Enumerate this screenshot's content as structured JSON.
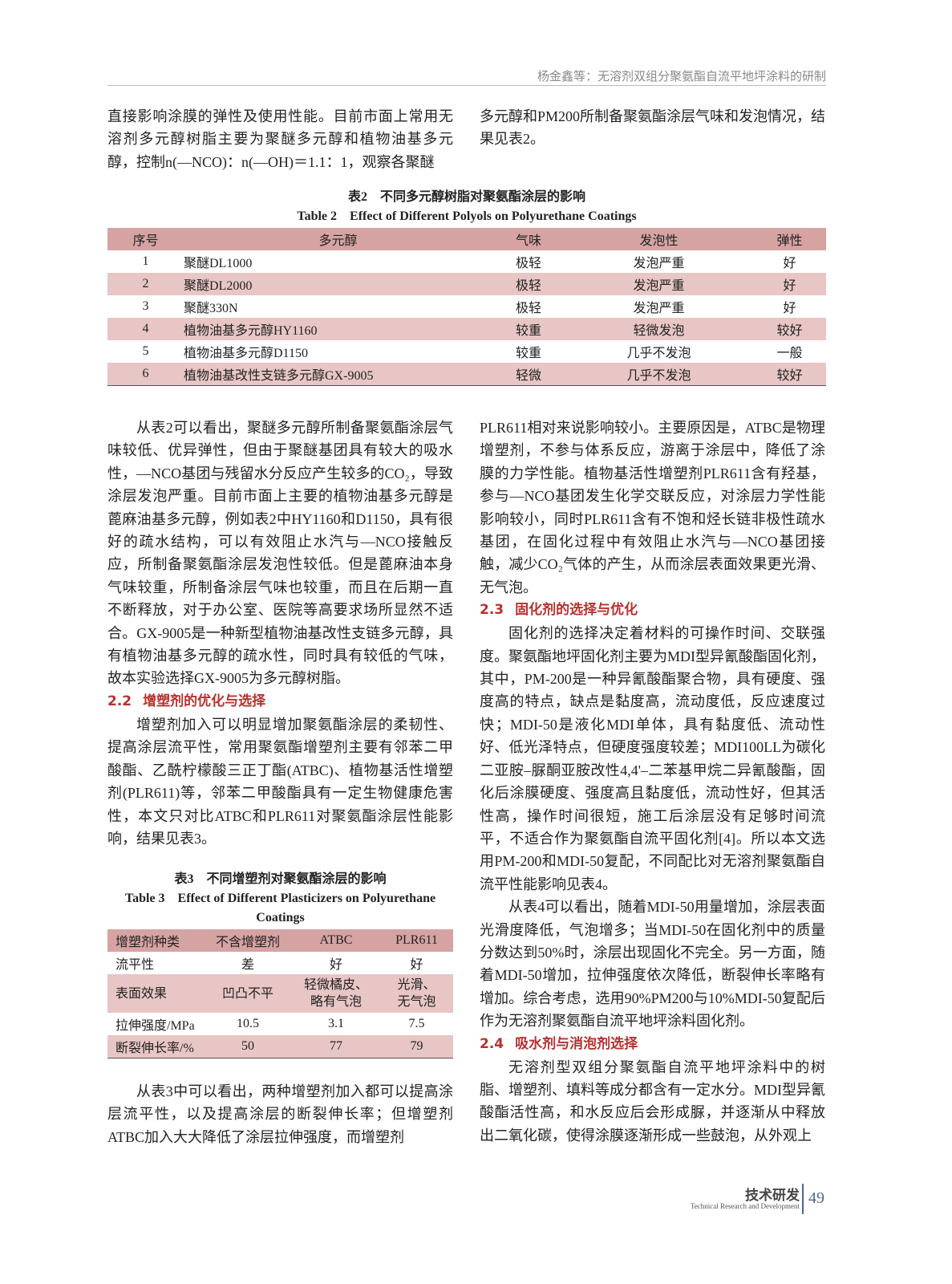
{
  "header": {
    "running_title": "杨金鑫等：无溶剂双组分聚氨酯自流平地坪涂料的研制"
  },
  "top_left": "直接影响涂膜的弹性及使用性能。目前市面上常用无溶剂多元醇树脂主要为聚醚多元醇和植物油基多元醇，控制n(—NCO)：n(—OH)＝1.1：1，观察各聚醚",
  "top_right": "多元醇和PM200所制备聚氨酯涂层气味和发泡情况，结果见表2。",
  "table2": {
    "title_cn": "表2　不同多元醇树脂对聚氨酯涂层的影响",
    "title_en": "Table 2　Effect of Different Polyols on Polyurethane Coatings",
    "headers": [
      "序号",
      "多元醇",
      "气味",
      "发泡性",
      "弹性"
    ],
    "rows": [
      [
        "1",
        "聚醚DL1000",
        "极轻",
        "发泡严重",
        "好"
      ],
      [
        "2",
        "聚醚DL2000",
        "极轻",
        "发泡严重",
        "好"
      ],
      [
        "3",
        "聚醚330N",
        "极轻",
        "发泡严重",
        "好"
      ],
      [
        "4",
        "植物油基多元醇HY1160",
        "较重",
        "轻微发泡",
        "较好"
      ],
      [
        "5",
        "植物油基多元醇D1150",
        "较重",
        "几乎不发泡",
        "一般"
      ],
      [
        "6",
        "植物油基改性支链多元醇GX-9005",
        "轻微",
        "几乎不发泡",
        "较好"
      ]
    ]
  },
  "left": {
    "p1": "从表2可以看出，聚醚多元醇所制备聚氨酯涂层气味较低、优异弹性，但由于聚醚基团具有较大的吸水性，—NCO基团与残留水分反应产生较多的CO₂，导致涂层发泡严重。目前市面上主要的植物油基多元醇是蓖麻油基多元醇，例如表2中HY1160和D1150，具有很好的疏水结构，可以有效阻止水汽与—NCO接触反应，所制备聚氨酯涂层发泡性较低。但是蓖麻油本身气味较重，所制备涂层气味也较重，而且在后期一直不断释放，对于办公室、医院等高要求场所显然不适合。GX-9005是一种新型植物油基改性支链多元醇，具有植物油基多元醇的疏水性，同时具有较低的气味，故本实验选择GX-9005为多元醇树脂。",
    "h22_num": "2.2",
    "h22": "增塑剂的优化与选择",
    "p2": "增塑剂加入可以明显增加聚氨酯涂层的柔韧性、提高涂层流平性，常用聚氨酯增塑剂主要有邻苯二甲酸酯、乙酰柠檬酸三正丁酯(ATBC)、植物基活性增塑剂(PLR611)等，邻苯二甲酸酯具有一定生物健康危害性，本文只对比ATBC和PLR611对聚氨酯涂层性能影响，结果见表3。",
    "p3": "从表3中可以看出，两种增塑剂加入都可以提高涂层流平性，以及提高涂层的断裂伸长率；但增塑剂ATBC加入大大降低了涂层拉伸强度，而增塑剂"
  },
  "table3": {
    "title_cn": "表3　不同增塑剂对聚氨酯涂层的影响",
    "title_en": "Table 3　Effect of Different Plasticizers on Polyurethane Coatings",
    "headers": [
      "增塑剂种类",
      "不含增塑剂",
      "ATBC",
      "PLR611"
    ],
    "rows": [
      [
        "流平性",
        "差",
        "好",
        "好"
      ],
      [
        "表面效果",
        "凹凸不平",
        "轻微橘皮、略有气泡",
        "光滑、无气泡"
      ],
      [
        "拉伸强度/MPa",
        "10.5",
        "3.1",
        "7.5"
      ],
      [
        "断裂伸长率/%",
        "50",
        "77",
        "79"
      ]
    ]
  },
  "right": {
    "p1": "PLR611相对来说影响较小。主要原因是，ATBC是物理增塑剂，不参与体系反应，游离于涂层中，降低了涂膜的力学性能。植物基活性增塑剂PLR611含有羟基，参与—NCO基团发生化学交联反应，对涂层力学性能影响较小，同时PLR611含有不饱和烃长链非极性疏水基团，在固化过程中有效阻止水汽与—NCO基团接触，减少CO₂气体的产生，从而涂层表面效果更光滑、无气泡。",
    "h23_num": "2.3",
    "h23": "固化剂的选择与优化",
    "p2": "固化剂的选择决定着材料的可操作时间、交联强度。聚氨酯地坪固化剂主要为MDI型异氰酸酯固化剂，其中，PM-200是一种异氰酸酯聚合物，具有硬度、强度高的特点，缺点是黏度高，流动度低，反应速度过快；MDI-50是液化MDI单体，具有黏度低、流动性好、低光泽特点，但硬度强度较差；MDI100LL为碳化二亚胺–脲酮亚胺改性4,4'–二苯基甲烷二异氰酸酯，固化后涂膜硬度、强度高且黏度低，流动性好，但其活性高，操作时间很短，施工后涂层没有足够时间流平，不适合作为聚氨酯自流平固化剂[4]。所以本文选用PM-200和MDI-50复配，不同配比对无溶剂聚氨酯自流平性能影响见表4。",
    "p3": "从表4可以看出，随着MDI-50用量增加，涂层表面光滑度降低，气泡增多；当MDI-50在固化剂中的质量分数达到50%时，涂层出现固化不完全。另一方面，随着MDI-50增加，拉伸强度依次降低，断裂伸长率略有增加。综合考虑，选用90%PM200与10%MDI-50复配后作为无溶剂聚氨酯自流平地坪涂料固化剂。",
    "h24_num": "2.4",
    "h24": "吸水剂与消泡剂选择",
    "p4": "无溶剂型双组分聚氨酯自流平地坪涂料中的树脂、增塑剂、填料等成分都含有一定水分。MDI型异氰酸酯活性高，和水反应后会形成脲，并逐渐从中释放出二氧化碳，使得涂膜逐渐形成一些鼓泡，从外观上"
  },
  "footer": {
    "section_cn": "技术研发",
    "section_en": "Technical Research and Development",
    "page_number": "49"
  },
  "colors": {
    "heading": "#b8312f",
    "table_header": "#d6a3a3",
    "table_stripe": "#e8c6c6",
    "page_number": "#4a6a90"
  }
}
